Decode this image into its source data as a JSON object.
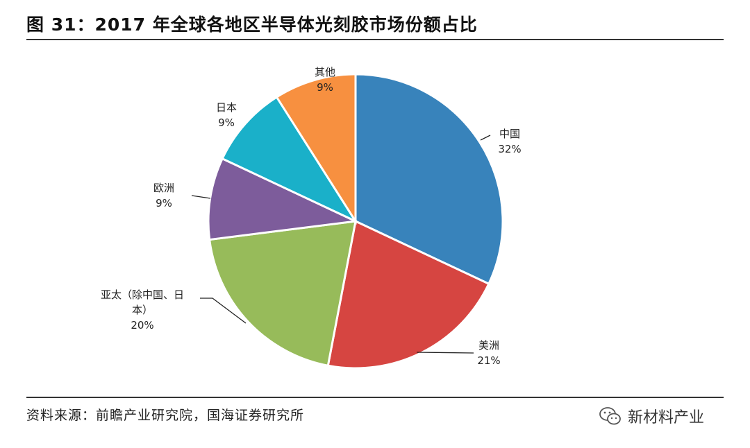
{
  "title": "图 31：2017 年全球各地区半导体光刻胶市场份额占比",
  "source": "资料来源：前瞻产业研究院，国海证券研究所",
  "watermark": "新材料产业",
  "chart_data": {
    "type": "pie",
    "title": "图 31：2017 年全球各地区半导体光刻胶市场份额占比",
    "start_angle_deg": 0,
    "direction": "clockwise",
    "slices": [
      {
        "label": "中国",
        "label_lines": [
          "中国"
        ],
        "value": 32,
        "value_label": "32%",
        "color": "#3883bb"
      },
      {
        "label": "美洲",
        "label_lines": [
          "美洲"
        ],
        "value": 21,
        "value_label": "21%",
        "color": "#d64541"
      },
      {
        "label": "亚太（除中国、日本）",
        "label_lines": [
          "亚太（除中国、日",
          "本）"
        ],
        "value": 20,
        "value_label": "20%",
        "color": "#97bb5a"
      },
      {
        "label": "欧洲",
        "label_lines": [
          "欧洲"
        ],
        "value": 9,
        "value_label": "9%",
        "color": "#7d5c9b"
      },
      {
        "label": "日本",
        "label_lines": [
          "日本"
        ],
        "value": 9,
        "value_label": "9%",
        "color": "#1ab0c9"
      },
      {
        "label": "其他",
        "label_lines": [
          "其他"
        ],
        "value": 9,
        "value_label": "9%",
        "color": "#f79040"
      }
    ]
  }
}
